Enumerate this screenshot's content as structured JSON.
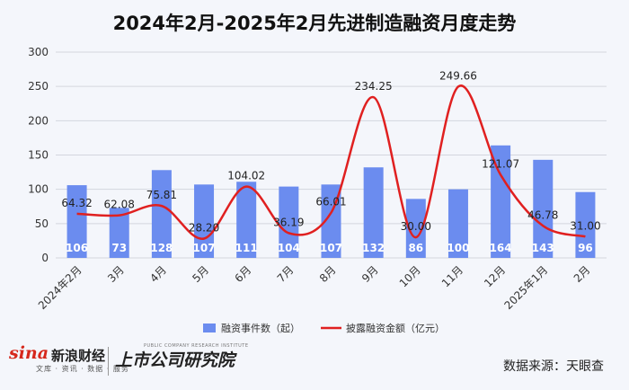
{
  "title": "2024年2月-2025年2月先进制造融资月度走势",
  "chart_data": {
    "type": "bar",
    "categories": [
      "2024年2月",
      "3月",
      "4月",
      "5月",
      "6月",
      "7月",
      "8月",
      "9月",
      "10月",
      "11月",
      "12月",
      "2025年1月",
      "2月"
    ],
    "series": [
      {
        "name": "融资事件数（起）",
        "type": "bar",
        "color": "#6b8cef",
        "values": [
          106,
          73,
          128,
          107,
          111,
          104,
          107,
          132,
          86,
          100,
          164,
          143,
          96
        ]
      },
      {
        "name": "披露融资金额（亿元）",
        "type": "line",
        "color": "#e02020",
        "values": [
          64.32,
          62.08,
          75.81,
          28.2,
          104.02,
          36.19,
          66.01,
          234.25,
          30.0,
          249.66,
          121.07,
          46.78,
          31.0
        ]
      }
    ],
    "bar_labels": [
      "106",
      "73",
      "128",
      "107",
      "111",
      "104",
      "107",
      "132",
      "86",
      "100",
      "164",
      "143",
      "96"
    ],
    "line_labels": [
      "64.32",
      "62.08",
      "75.81",
      "28.20",
      "104.02",
      "36.19",
      "66.01",
      "234.25",
      "30.00",
      "249.66",
      "121.07",
      "46.78",
      "31.00"
    ],
    "yticks": [
      "0",
      "50",
      "100",
      "150",
      "200",
      "250",
      "300"
    ],
    "ylim": [
      0,
      300
    ],
    "grid": true,
    "legend_position": "bottom"
  },
  "footer": {
    "logo_en": "sina",
    "logo_cn": "新浪财经",
    "logo_sub": "文库 · 资讯 · 数据 · 服务",
    "institute": "上市公司研究院",
    "institute_en": "PUBLIC COMPANY RESEARCH INSTITUTE",
    "source": "数据来源：天眼查"
  }
}
